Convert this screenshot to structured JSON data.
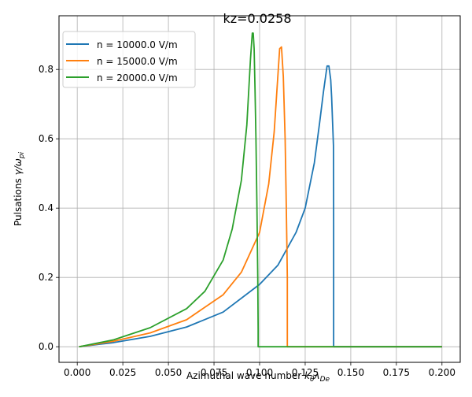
{
  "chart_data": {
    "type": "line",
    "title": "kz=0.0258",
    "xlabel_main": "Azimuthal wave number ",
    "xlabel_sym": "k",
    "xlabel_sub1": "θ",
    "xlabel_sym2": "λ",
    "xlabel_sub2": "De",
    "ylabel_main": "Pulsations  ",
    "ylabel_sym": "γ/ω",
    "ylabel_sub": "pi",
    "xlim": [
      -0.01,
      0.21
    ],
    "ylim": [
      -0.045,
      0.955
    ],
    "xticks": [
      0.0,
      0.025,
      0.05,
      0.075,
      0.1,
      0.125,
      0.15,
      0.175,
      0.2
    ],
    "xtick_labels": [
      "0.000",
      "0.025",
      "0.050",
      "0.075",
      "0.100",
      "0.125",
      "0.150",
      "0.175",
      "0.200"
    ],
    "yticks": [
      0.0,
      0.2,
      0.4,
      0.6,
      0.8
    ],
    "ytick_labels": [
      "0.0",
      "0.2",
      "0.4",
      "0.6",
      "0.8"
    ],
    "grid": true,
    "legend_position": "top-left",
    "series": [
      {
        "name": "n = 10000.0 V/m",
        "color": "#1f77b4",
        "x": [
          0.001,
          0.02,
          0.04,
          0.06,
          0.08,
          0.1,
          0.11,
          0.12,
          0.125,
          0.13,
          0.133,
          0.135,
          0.137,
          0.138,
          0.139,
          0.1395,
          0.14,
          0.1405,
          0.1406,
          0.1406,
          0.15,
          0.2
        ],
        "y": [
          0.0,
          0.012,
          0.03,
          0.057,
          0.1,
          0.18,
          0.235,
          0.33,
          0.4,
          0.53,
          0.65,
          0.735,
          0.81,
          0.81,
          0.77,
          0.72,
          0.65,
          0.58,
          0.35,
          0.0,
          0.0,
          0.0
        ]
      },
      {
        "name": "n = 15000.0 V/m",
        "color": "#ff7f0e",
        "x": [
          0.001,
          0.02,
          0.04,
          0.06,
          0.08,
          0.09,
          0.1,
          0.105,
          0.108,
          0.11,
          0.111,
          0.112,
          0.113,
          0.114,
          0.1145,
          0.115,
          0.1152,
          0.1152,
          0.13,
          0.2
        ],
        "y": [
          0.0,
          0.016,
          0.04,
          0.078,
          0.15,
          0.215,
          0.33,
          0.47,
          0.62,
          0.78,
          0.86,
          0.865,
          0.78,
          0.6,
          0.45,
          0.28,
          0.2,
          0.0,
          0.0,
          0.0
        ]
      },
      {
        "name": "n = 20000.0 V/m",
        "color": "#2ca02c",
        "x": [
          0.001,
          0.02,
          0.04,
          0.06,
          0.07,
          0.08,
          0.085,
          0.09,
          0.093,
          0.095,
          0.096,
          0.0965,
          0.097,
          0.0975,
          0.098,
          0.0985,
          0.099,
          0.0992,
          0.0992,
          0.11,
          0.2
        ],
        "y": [
          0.0,
          0.02,
          0.055,
          0.11,
          0.16,
          0.25,
          0.34,
          0.48,
          0.64,
          0.83,
          0.905,
          0.905,
          0.86,
          0.74,
          0.6,
          0.42,
          0.2,
          0.05,
          0.0,
          0.0,
          0.0
        ]
      }
    ]
  }
}
